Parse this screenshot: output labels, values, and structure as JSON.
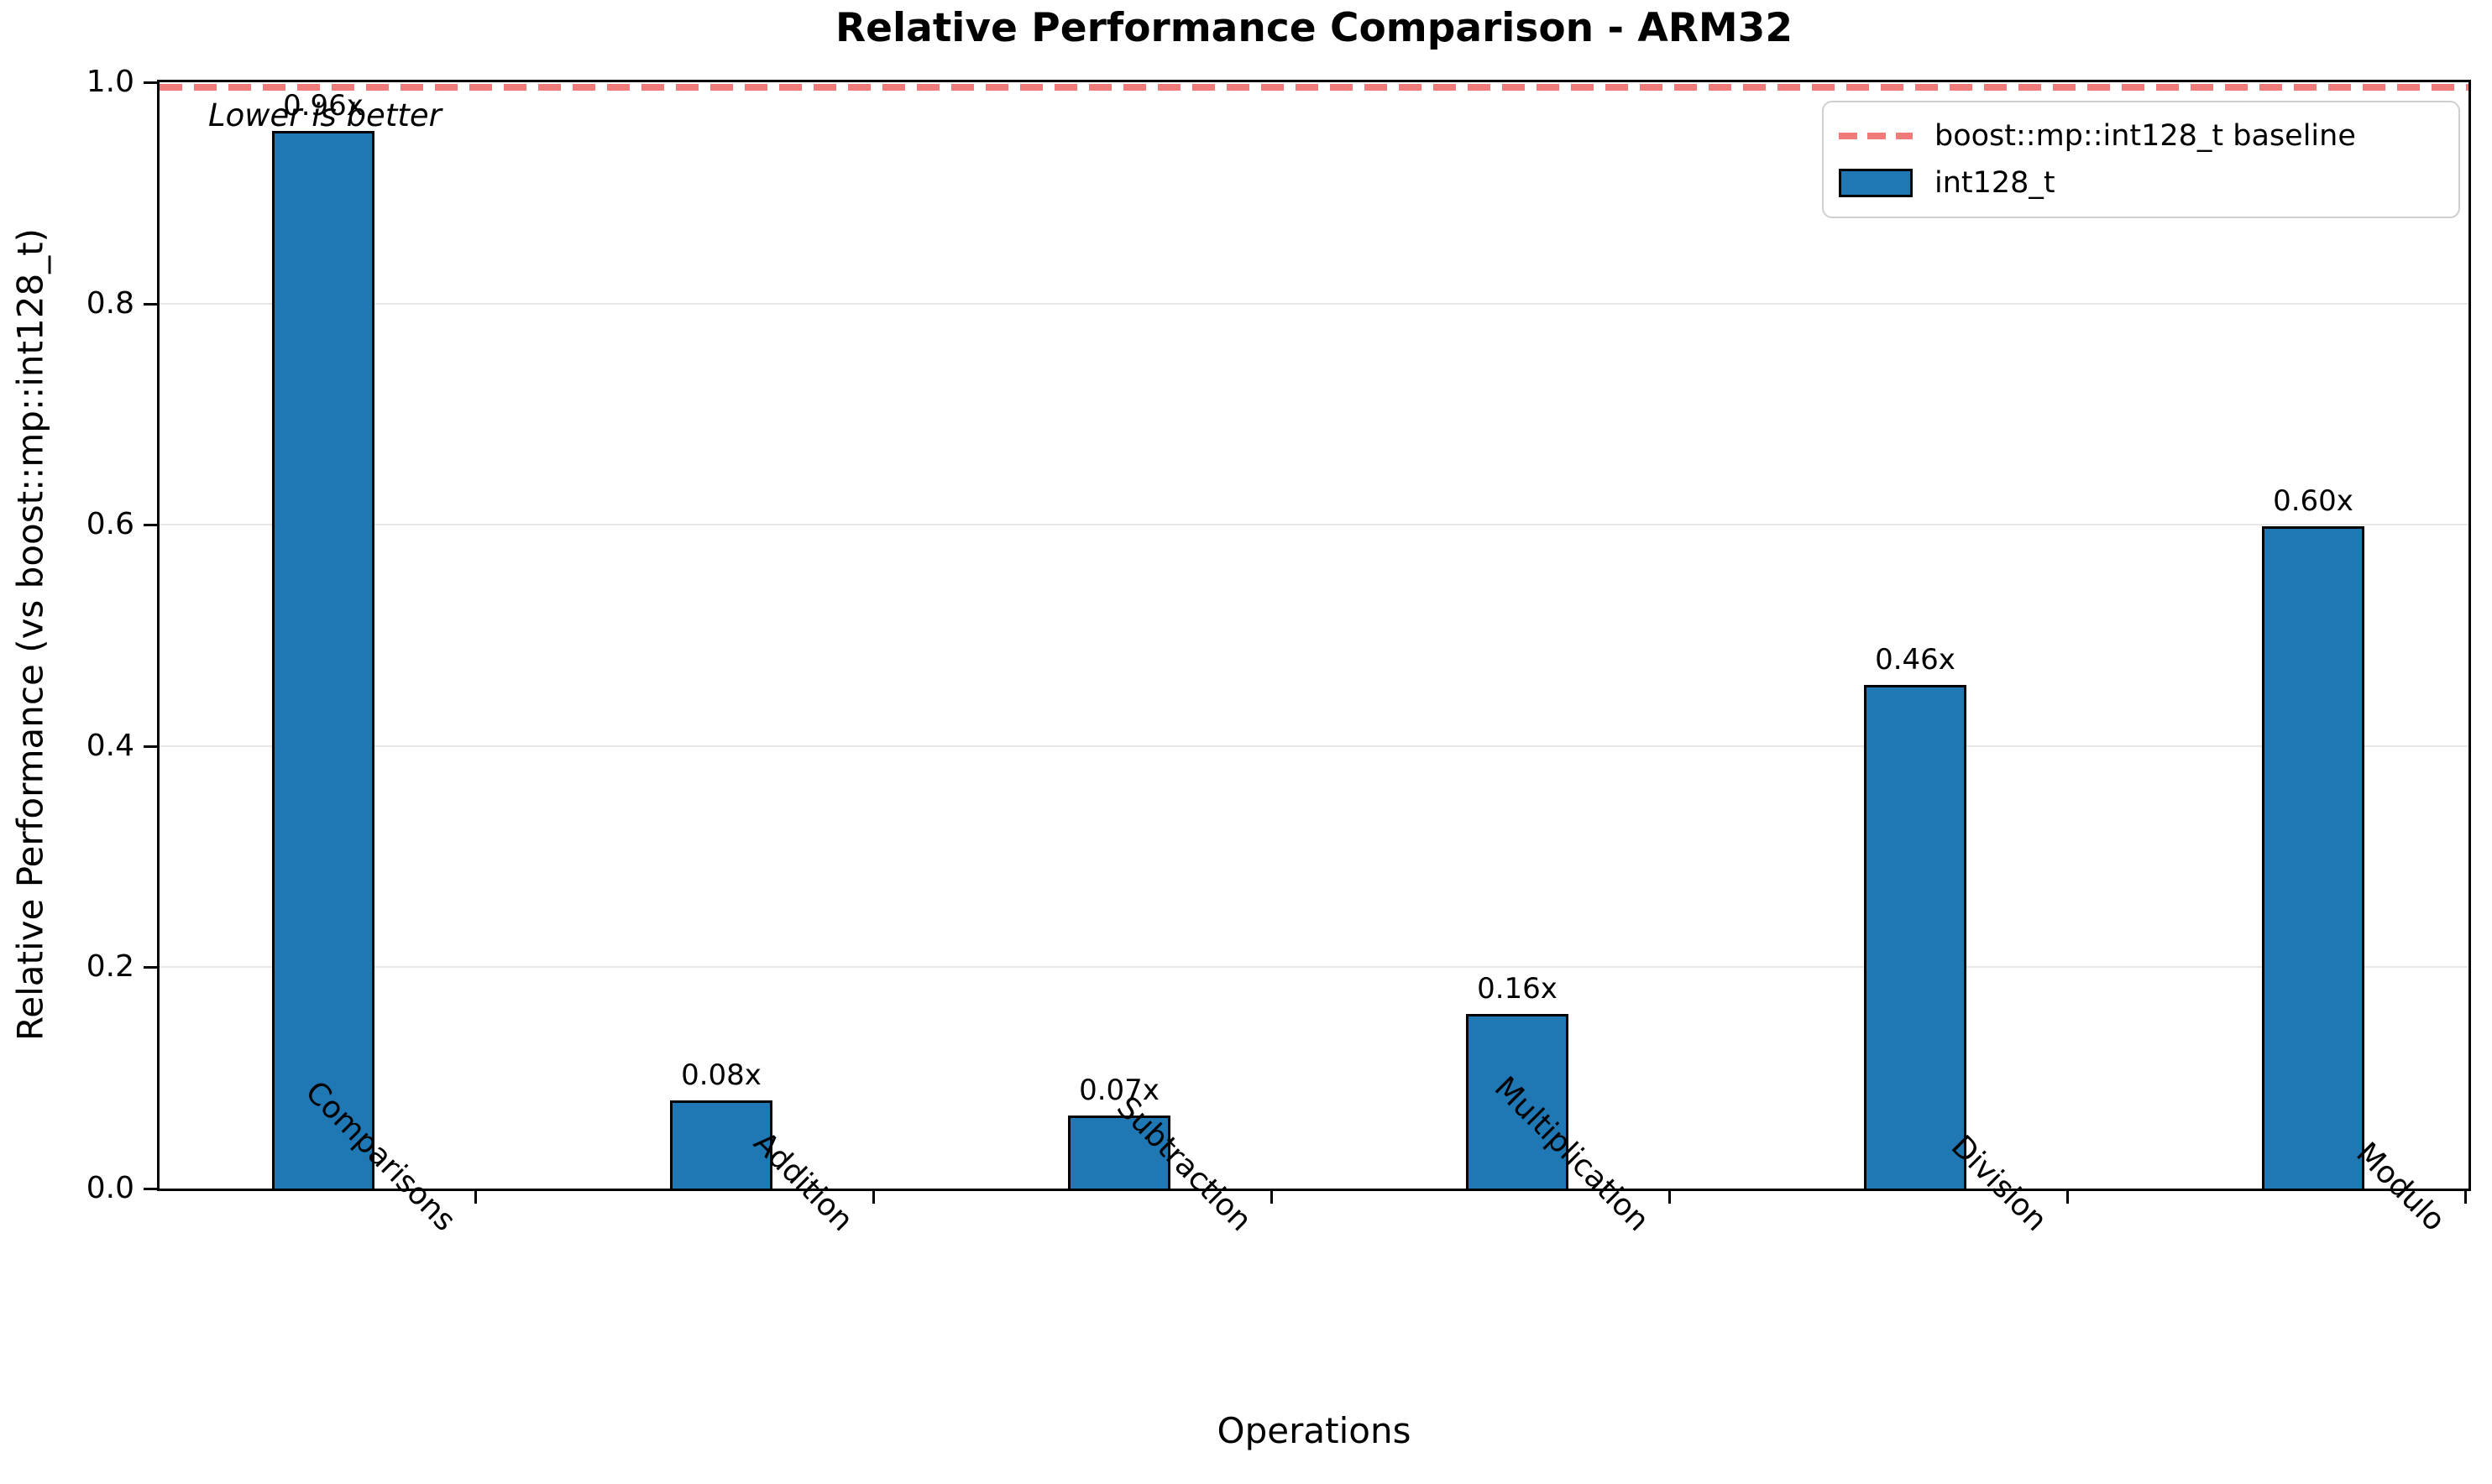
{
  "chart_data": {
    "type": "bar",
    "title": "Relative Performance Comparison - ARM32",
    "xlabel": "Operations",
    "ylabel": "Relative Performance (vs boost::mp::int128_t)",
    "annotation": "Lower is better",
    "categories": [
      "Comparisons",
      "Addition",
      "Subtraction",
      "Multiplication",
      "Division",
      "Modulo"
    ],
    "series": [
      {
        "name": "int128_t",
        "values": [
          0.956,
          0.08,
          0.066,
          0.158,
          0.455,
          0.599
        ],
        "color": "#1f77b4",
        "edge_color": "#000000"
      }
    ],
    "bar_labels": [
      "0.96x",
      "0.08x",
      "0.07x",
      "0.16x",
      "0.46x",
      "0.60x"
    ],
    "baseline": {
      "value": 1.0,
      "label": "boost::mp::int128_t baseline",
      "color": "#ef7b7b",
      "style": "dashed"
    },
    "ylim": [
      0.0,
      1.0
    ],
    "yticks": [
      "0.0",
      "0.2",
      "0.4",
      "0.6",
      "0.8",
      "1.0"
    ],
    "grid": true,
    "grid_color": "#e7e7e7",
    "legend_position": "upper right"
  }
}
